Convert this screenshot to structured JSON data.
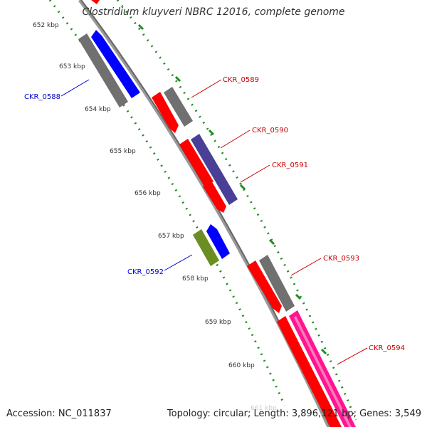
{
  "title": "Clostridium kluyveri NBRC 12016, complete genome",
  "footer": {
    "accession": "Accession: NC_011837",
    "summary": "Topology: circular; Length: 3,896,121 bp; Genes: 3,549"
  },
  "colors": {
    "red": "#ff0000",
    "gray": "#707070",
    "blue": "#0000ff",
    "slate": "#4a3f96",
    "olive": "#6b8e23",
    "pink": "#ff1493",
    "backbone": "#888888",
    "ruler": "#228b22",
    "red_label": "#cc0000",
    "blue_label": "#0000cc"
  },
  "ruler_labels": [
    "652 kbp",
    "653 kbp",
    "654 kbp",
    "655 kbp",
    "656 kbp",
    "657 kbp",
    "658 kbp",
    "659 kbp",
    "660 kbp",
    "661 kbp"
  ],
  "genes": [
    {
      "label": "CKR_0588",
      "strand": "minus",
      "color": "blue"
    },
    {
      "label": "CKR_0589",
      "strand": "plus",
      "color": "red"
    },
    {
      "label": "CKR_0590",
      "strand": "plus",
      "color": "red"
    },
    {
      "label": "CKR_0591",
      "strand": "plus",
      "color": "slate"
    },
    {
      "label": "CKR_0592",
      "strand": "minus",
      "color": "blue"
    },
    {
      "label": "CKR_0593",
      "strand": "plus",
      "color": "red"
    },
    {
      "label": "CKR_0594",
      "strand": "plus",
      "color": "pink"
    }
  ]
}
